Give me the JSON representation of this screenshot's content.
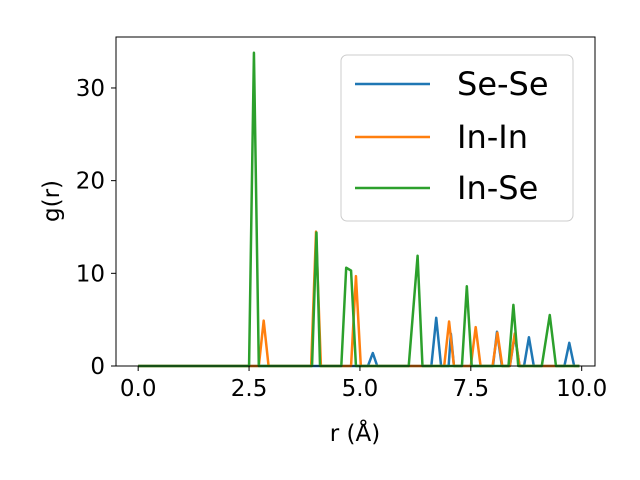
{
  "chart_data": {
    "type": "line",
    "xlabel": "r (Å)",
    "ylabel": "g(r)",
    "xlim": [
      -0.5,
      10.3
    ],
    "ylim": [
      0,
      35.5
    ],
    "xticks": [
      "0.0",
      "2.5",
      "5.0",
      "7.5",
      "10.0"
    ],
    "yticks": [
      "0",
      "10",
      "20",
      "30"
    ],
    "grid": false,
    "legend_position": "top-right",
    "series": [
      {
        "name": "Se-Se",
        "color": "#1f77b4",
        "points": [
          [
            0,
            0
          ],
          [
            5.18,
            0
          ],
          [
            5.29,
            1.4
          ],
          [
            5.39,
            0
          ],
          [
            6.61,
            0
          ],
          [
            6.72,
            5.2
          ],
          [
            6.83,
            0
          ],
          [
            7.0,
            0
          ],
          [
            7.05,
            3.5
          ],
          [
            7.12,
            0
          ],
          [
            8.0,
            0
          ],
          [
            8.09,
            3.7
          ],
          [
            8.2,
            0
          ],
          [
            8.38,
            0
          ],
          [
            8.49,
            3.3
          ],
          [
            8.6,
            0
          ],
          [
            8.7,
            0
          ],
          [
            8.81,
            3.1
          ],
          [
            8.92,
            0
          ],
          [
            9.61,
            0
          ],
          [
            9.72,
            2.5
          ],
          [
            9.83,
            0
          ],
          [
            9.95,
            0
          ]
        ]
      },
      {
        "name": "In-In",
        "color": "#ff7f0e",
        "points": [
          [
            0,
            0
          ],
          [
            2.72,
            0
          ],
          [
            2.83,
            4.9
          ],
          [
            2.94,
            0
          ],
          [
            3.9,
            0
          ],
          [
            4.01,
            14.5
          ],
          [
            4.12,
            0
          ],
          [
            4.8,
            0
          ],
          [
            4.91,
            9.7
          ],
          [
            5.02,
            0
          ],
          [
            6.9,
            0
          ],
          [
            7.01,
            4.8
          ],
          [
            7.12,
            0
          ],
          [
            7.5,
            0
          ],
          [
            7.61,
            4.2
          ],
          [
            7.72,
            0
          ],
          [
            7.99,
            0
          ],
          [
            8.1,
            3.6
          ],
          [
            8.21,
            0
          ],
          [
            8.38,
            0
          ],
          [
            8.49,
            3.5
          ],
          [
            8.6,
            0
          ],
          [
            9.95,
            0
          ]
        ]
      },
      {
        "name": "In-Se",
        "color": "#2ca02c",
        "points": [
          [
            0,
            0
          ],
          [
            2.5,
            0
          ],
          [
            2.61,
            33.8
          ],
          [
            2.72,
            0
          ],
          [
            3.92,
            0
          ],
          [
            4.02,
            14.4
          ],
          [
            4.1,
            0
          ],
          [
            4.58,
            0
          ],
          [
            4.69,
            10.6
          ],
          [
            4.8,
            10.3
          ],
          [
            4.91,
            0
          ],
          [
            6.1,
            0
          ],
          [
            6.3,
            11.9
          ],
          [
            6.41,
            0
          ],
          [
            7.3,
            0
          ],
          [
            7.41,
            8.6
          ],
          [
            7.52,
            0
          ],
          [
            8.35,
            0
          ],
          [
            8.46,
            6.6
          ],
          [
            8.57,
            0
          ],
          [
            9.1,
            0
          ],
          [
            9.28,
            5.5
          ],
          [
            9.42,
            0
          ],
          [
            9.95,
            0
          ]
        ]
      }
    ]
  }
}
